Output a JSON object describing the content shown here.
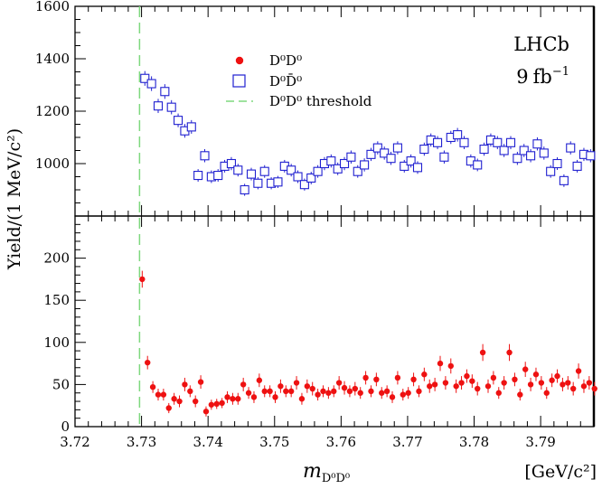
{
  "chart_data": {
    "type": "scatter",
    "experiment": "LHCb",
    "luminosity": "9",
    "luminosity_unit": "fb",
    "luminosity_exp": "−1",
    "x_axis": {
      "label_main": "m",
      "label_sub": "D⁰D⁰",
      "unit_label": "[GeV/c²]",
      "range": [
        3.72,
        3.798
      ],
      "ticks": [
        "3.72",
        "3.73",
        "3.74",
        "3.75",
        "3.76",
        "3.77",
        "3.78",
        "3.79"
      ],
      "tick_values": [
        3.72,
        3.73,
        3.74,
        3.75,
        3.76,
        3.77,
        3.78,
        3.79
      ]
    },
    "y_axis": {
      "label": "Yield/(1 MeV/c²)"
    },
    "threshold": {
      "x": 3.7297,
      "label": "D⁰D⁰ threshold",
      "color": "#7ed87e"
    },
    "panels": [
      {
        "name": "upper",
        "ylim": [
          800,
          1600
        ],
        "ticks": [
          1000,
          1200,
          1400,
          1600
        ],
        "tick_labels": [
          "1000",
          "1200",
          "1400",
          "1600"
        ],
        "series": {
          "name": "D⁰D̄⁰",
          "marker": "open-square",
          "color": "#2020d0",
          "x": [
            3.7305,
            3.7315,
            3.7325,
            3.7335,
            3.7345,
            3.7355,
            3.7365,
            3.7375,
            3.7385,
            3.7395,
            3.7405,
            3.7415,
            3.7425,
            3.7435,
            3.7445,
            3.7455,
            3.7465,
            3.7475,
            3.7485,
            3.7495,
            3.7505,
            3.7515,
            3.7525,
            3.7535,
            3.7545,
            3.7555,
            3.7565,
            3.7575,
            3.7585,
            3.7595,
            3.7605,
            3.7615,
            3.7625,
            3.7635,
            3.7645,
            3.7655,
            3.7665,
            3.7675,
            3.7685,
            3.7695,
            3.7705,
            3.7715,
            3.7725,
            3.7735,
            3.7745,
            3.7755,
            3.7765,
            3.7775,
            3.7785,
            3.7795,
            3.7805,
            3.7815,
            3.7825,
            3.7835,
            3.7845,
            3.7855,
            3.7865,
            3.7875,
            3.7885,
            3.7895,
            3.7905,
            3.7915,
            3.7925,
            3.7935,
            3.7945,
            3.7955,
            3.7965,
            3.7975
          ],
          "y": [
            1325,
            1305,
            1220,
            1275,
            1215,
            1165,
            1125,
            1140,
            955,
            1030,
            950,
            955,
            990,
            1000,
            975,
            900,
            960,
            925,
            970,
            925,
            930,
            990,
            975,
            950,
            920,
            945,
            970,
            1000,
            1010,
            980,
            1000,
            1025,
            970,
            995,
            1035,
            1060,
            1040,
            1020,
            1060,
            990,
            1010,
            985,
            1055,
            1090,
            1080,
            1025,
            1100,
            1110,
            1080,
            1010,
            995,
            1055,
            1090,
            1080,
            1050,
            1080,
            1020,
            1050,
            1030,
            1075,
            1040,
            970,
            1000,
            935,
            1060,
            990,
            1035,
            1030
          ],
          "err": [
            28,
            28,
            27,
            28,
            27,
            26,
            26,
            26,
            24,
            25,
            24,
            24,
            24,
            25,
            24,
            23,
            24,
            23,
            24,
            23,
            23,
            24,
            24,
            24,
            23,
            24,
            24,
            25,
            25,
            24,
            25,
            25,
            24,
            25,
            25,
            25,
            25,
            25,
            25,
            24,
            25,
            24,
            25,
            25,
            25,
            25,
            25,
            26,
            25,
            25,
            24,
            25,
            25,
            25,
            25,
            25,
            25,
            25,
            25,
            25,
            25,
            24,
            24,
            24,
            25,
            24,
            25,
            25
          ]
        }
      },
      {
        "name": "lower",
        "ylim": [
          0,
          250
        ],
        "ticks": [
          0,
          50,
          100,
          150,
          200
        ],
        "tick_labels": [
          "0",
          "50",
          "100",
          "150",
          "200"
        ],
        "series": {
          "name": "D⁰D⁰",
          "marker": "filled-circle",
          "color": "#ee1111",
          "x": [
            3.7301,
            3.7309,
            3.7317,
            3.7325,
            3.7333,
            3.7341,
            3.7349,
            3.7357,
            3.7365,
            3.7373,
            3.7381,
            3.7389,
            3.7397,
            3.7405,
            3.7413,
            3.7421,
            3.7429,
            3.7437,
            3.7445,
            3.7453,
            3.7461,
            3.7469,
            3.7477,
            3.7485,
            3.7493,
            3.7501,
            3.7509,
            3.7517,
            3.7525,
            3.7533,
            3.7541,
            3.7549,
            3.7557,
            3.7565,
            3.7573,
            3.7581,
            3.7589,
            3.7597,
            3.7605,
            3.7613,
            3.7621,
            3.7629,
            3.7637,
            3.7645,
            3.7653,
            3.7661,
            3.7669,
            3.7677,
            3.7685,
            3.7693,
            3.7701,
            3.7709,
            3.7717,
            3.7725,
            3.7733,
            3.7741,
            3.7749,
            3.7757,
            3.7765,
            3.7773,
            3.7781,
            3.7789,
            3.7797,
            3.7805,
            3.7813,
            3.7821,
            3.7829,
            3.7837,
            3.7845,
            3.7853,
            3.7861,
            3.7869,
            3.7877,
            3.7885,
            3.7893,
            3.7901,
            3.7909,
            3.7917,
            3.7925,
            3.7933,
            3.7941,
            3.7949,
            3.7957,
            3.7965,
            3.7973,
            3.7981
          ],
          "y": [
            175,
            76,
            47,
            38,
            38,
            22,
            33,
            30,
            50,
            42,
            30,
            53,
            18,
            26,
            27,
            28,
            35,
            33,
            33,
            50,
            40,
            35,
            55,
            42,
            42,
            35,
            48,
            42,
            42,
            52,
            33,
            48,
            45,
            38,
            42,
            40,
            42,
            52,
            46,
            42,
            45,
            40,
            58,
            42,
            56,
            40,
            42,
            35,
            58,
            38,
            40,
            56,
            42,
            62,
            48,
            50,
            75,
            52,
            72,
            48,
            52,
            60,
            54,
            45,
            88,
            48,
            58,
            40,
            52,
            88,
            56,
            38,
            68,
            50,
            62,
            52,
            40,
            55,
            60,
            50,
            52,
            45,
            66,
            48,
            52,
            45
          ],
          "err": [
            10,
            8,
            7,
            7,
            7,
            6,
            7,
            7,
            8,
            7,
            7,
            8,
            6,
            6,
            6,
            6,
            7,
            7,
            7,
            8,
            7,
            7,
            8,
            7,
            7,
            7,
            8,
            7,
            7,
            8,
            7,
            8,
            8,
            7,
            7,
            7,
            7,
            8,
            8,
            7,
            8,
            7,
            8,
            7,
            8,
            7,
            7,
            7,
            8,
            7,
            7,
            8,
            7,
            8,
            8,
            8,
            9,
            8,
            9,
            8,
            8,
            8,
            8,
            8,
            10,
            8,
            8,
            7,
            8,
            10,
            8,
            7,
            9,
            8,
            8,
            8,
            7,
            8,
            8,
            8,
            8,
            8,
            9,
            8,
            8,
            8
          ]
        }
      }
    ],
    "legend": {
      "placement": "top-center",
      "entries": [
        {
          "label": "D⁰D⁰",
          "marker": "filled-circle",
          "color": "#ee1111"
        },
        {
          "label": "D⁰D̄⁰",
          "marker": "open-square",
          "color": "#2020d0"
        },
        {
          "label": "D⁰D⁰ threshold",
          "marker": "dashed-line",
          "color": "#7ed87e"
        }
      ]
    }
  }
}
